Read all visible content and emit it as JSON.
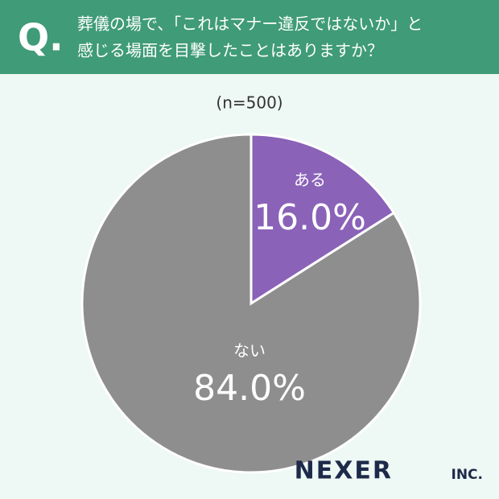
{
  "header": {
    "mark": "Q.",
    "lines": [
      "葬儀の場で、「これはマナー違反ではないか」と",
      "感じる場面を目撃したことはありますか？"
    ]
  },
  "chart_data": {
    "type": "pie",
    "subtitle": "(n=500)",
    "categories": [
      "ある",
      "ない"
    ],
    "values": [
      16.0,
      84.0
    ],
    "value_labels": [
      "16.0%",
      "84.0%"
    ],
    "colors": [
      "#8a62b8",
      "#8f8e8e"
    ]
  },
  "logo": {
    "name": "NEXER",
    "suffix": "INC."
  }
}
